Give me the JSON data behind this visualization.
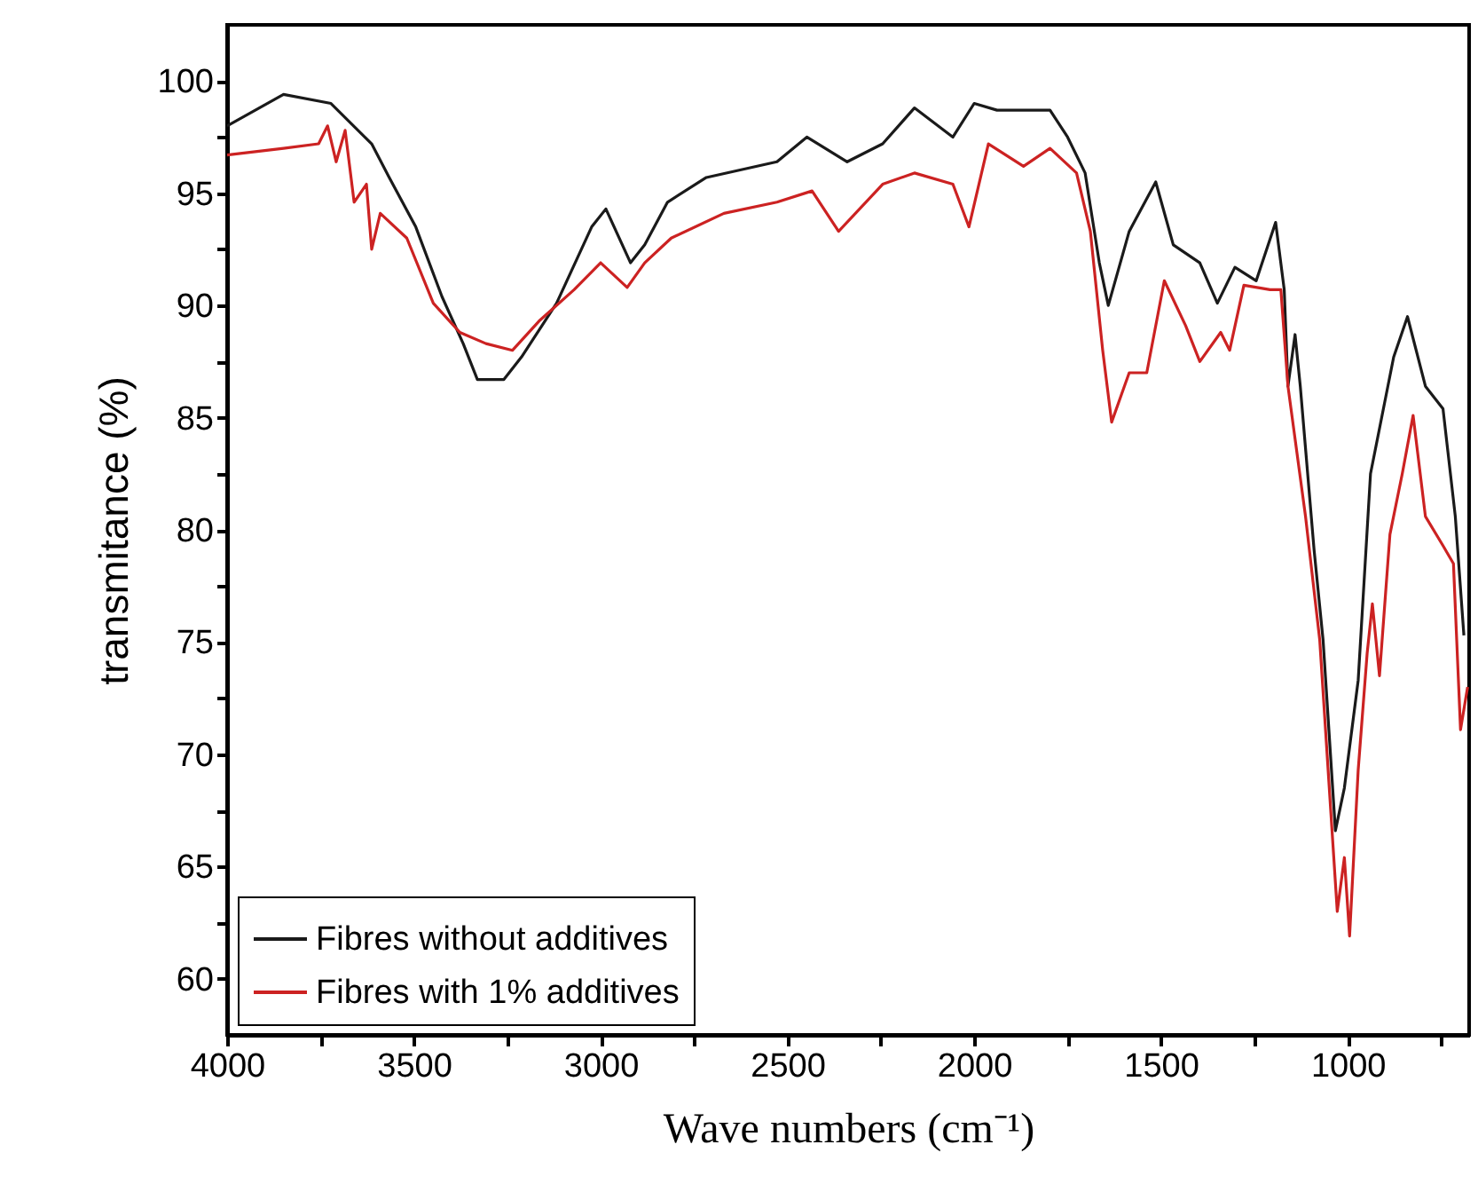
{
  "chart_data": {
    "type": "line",
    "xlabel": "Wave numbers (cm⁻¹)",
    "ylabel": "transmitance (%)",
    "xlim": [
      4000,
      675
    ],
    "ylim": [
      57.5,
      102.5
    ],
    "xticks": [
      4000,
      {
        "value": 3750,
        "label": null
      },
      3500,
      {
        "value": 3250,
        "label": null
      },
      3000,
      {
        "value": 2750,
        "label": null
      },
      2500,
      {
        "value": 2250,
        "label": null
      },
      2000,
      {
        "value": 1750,
        "label": null
      },
      1500,
      {
        "value": 1250,
        "label": null
      },
      1000,
      {
        "value": 750,
        "label": null
      }
    ],
    "yticks": [
      60,
      {
        "value": 62.5,
        "label": null
      },
      65,
      {
        "value": 67.5,
        "label": null
      },
      70,
      {
        "value": 72.5,
        "label": null
      },
      75,
      {
        "value": 77.5,
        "label": null
      },
      80,
      {
        "value": 82.5,
        "label": null
      },
      85,
      {
        "value": 87.5,
        "label": null
      },
      90,
      {
        "value": 92.5,
        "label": null
      },
      95,
      {
        "value": 97.5,
        "label": null
      },
      100
    ],
    "legend": "bottom left",
    "series": [
      {
        "name": "Fibres without additives",
        "color": "#1a1a1a",
        "x": [
          4000,
          3849,
          3722,
          3613,
          3566,
          3495,
          3425,
          3368,
          3330,
          3259,
          3212,
          3118,
          3024,
          2986,
          2920,
          2882,
          2821,
          2717,
          2528,
          2448,
          2340,
          2245,
          2160,
          2057,
          2000,
          1939,
          1797,
          1750,
          1703,
          1665,
          1641,
          1585,
          1514,
          1467,
          1396,
          1349,
          1302,
          1245,
          1193,
          1170,
          1160,
          1141,
          1127,
          1090,
          1066,
          1033,
          1009,
          972,
          939,
          877,
          840,
          792,
          745,
          712,
          689
        ],
        "values": [
          98.0,
          99.4,
          99.0,
          97.2,
          95.7,
          93.5,
          90.4,
          88.3,
          86.7,
          86.7,
          87.7,
          90.1,
          93.5,
          94.3,
          91.9,
          92.7,
          94.6,
          95.7,
          96.4,
          97.5,
          96.4,
          97.2,
          98.8,
          97.5,
          99.0,
          98.7,
          98.7,
          97.5,
          95.9,
          91.9,
          90.0,
          93.3,
          95.5,
          92.7,
          91.9,
          90.1,
          91.7,
          91.1,
          93.7,
          90.7,
          86.4,
          88.7,
          86.4,
          79.1,
          75.1,
          66.6,
          68.5,
          73.3,
          82.5,
          87.7,
          89.5,
          86.4,
          85.4,
          80.6,
          75.3
        ]
      },
      {
        "name": "Fibres with 1% additives",
        "color": "#cc2222",
        "x": [
          4000,
          3849,
          3755,
          3731,
          3708,
          3684,
          3660,
          3627,
          3613,
          3590,
          3519,
          3448,
          3377,
          3307,
          3236,
          3165,
          3071,
          3000,
          2929,
          2882,
          2811,
          2670,
          2528,
          2434,
          2363,
          2245,
          2160,
          2057,
          2014,
          1962,
          1868,
          1797,
          1726,
          1689,
          1656,
          1632,
          1585,
          1538,
          1491,
          1434,
          1396,
          1340,
          1316,
          1278,
          1208,
          1179,
          1160,
          1113,
          1075,
          1042,
          1028,
          1009,
          995,
          972,
          948,
          934,
          915,
          887,
          854,
          825,
          792,
          745,
          717,
          698,
          679
        ],
        "values": [
          96.7,
          97.0,
          97.2,
          98.0,
          96.4,
          97.8,
          94.6,
          95.4,
          92.5,
          94.1,
          93.0,
          90.1,
          88.8,
          88.3,
          88.0,
          89.3,
          90.7,
          91.9,
          90.8,
          91.9,
          93.0,
          94.1,
          94.6,
          95.1,
          93.3,
          95.4,
          95.9,
          95.4,
          93.5,
          97.2,
          96.2,
          97.0,
          95.9,
          93.3,
          88.0,
          84.8,
          87.0,
          87.0,
          91.1,
          89.1,
          87.5,
          88.8,
          88.0,
          90.9,
          90.7,
          90.7,
          86.4,
          80.6,
          75.1,
          66.6,
          63.0,
          65.4,
          61.9,
          69.3,
          74.5,
          76.7,
          73.5,
          79.8,
          82.5,
          85.1,
          80.6,
          79.3,
          78.5,
          71.1,
          73.0
        ]
      }
    ]
  }
}
